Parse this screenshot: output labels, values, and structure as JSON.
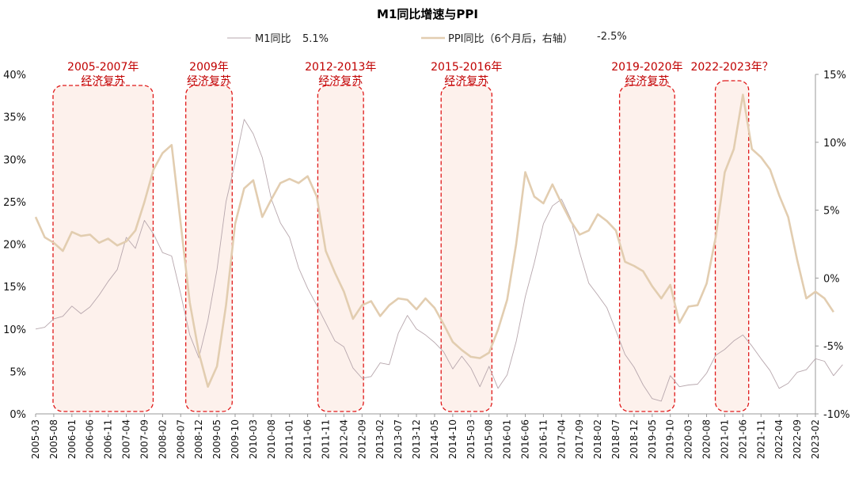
{
  "chart_data": {
    "type": "line",
    "title": "M1同比增速与PPI",
    "legend": [
      {
        "label": "M1同比",
        "value": "5.1%",
        "color": "#b7a7ad"
      },
      {
        "label": "PPI同比（6个月后，右轴）",
        "value": "-2.5%",
        "color": "#e2cdb0"
      }
    ],
    "y_left": {
      "min": 0,
      "max": 40,
      "ticks": [
        "0%",
        "5%",
        "10%",
        "15%",
        "20%",
        "25%",
        "30%",
        "35%",
        "40%"
      ]
    },
    "y_right": {
      "min": -10,
      "max": 15,
      "ticks": [
        "-10%",
        "-5%",
        "0%",
        "5%",
        "10%",
        "15%"
      ]
    },
    "x_ticks": [
      "2005-03",
      "2005-08",
      "2006-01",
      "2006-06",
      "2006-11",
      "2007-04",
      "2007-09",
      "2008-02",
      "2008-07",
      "2008-12",
      "2009-05",
      "2009-10",
      "2010-03",
      "2010-08",
      "2011-01",
      "2011-06",
      "2011-11",
      "2012-04",
      "2012-09",
      "2013-02",
      "2013-07",
      "2013-12",
      "2014-05",
      "2014-10",
      "2015-03",
      "2015-08",
      "2016-01",
      "2016-06",
      "2016-11",
      "2017-04",
      "2017-09",
      "2018-02",
      "2018-07",
      "2018-12",
      "2019-05",
      "2019-10",
      "2020-03",
      "2020-08",
      "2021-01",
      "2021-06",
      "2021-11",
      "2022-04",
      "2022-09",
      "2023-02"
    ],
    "series": [
      {
        "name": "M1同比",
        "axis": "left",
        "color": "#b7a7ad",
        "points": [
          [
            0,
            10.0
          ],
          [
            1,
            10.2
          ],
          [
            2,
            11.2
          ],
          [
            3,
            11.5
          ],
          [
            4,
            12.7
          ],
          [
            5,
            11.8
          ],
          [
            6,
            12.6
          ],
          [
            7,
            14.0
          ],
          [
            8,
            15.6
          ],
          [
            9,
            17.0
          ],
          [
            10,
            20.8
          ],
          [
            11,
            19.5
          ],
          [
            12,
            22.8
          ],
          [
            13,
            21.2
          ],
          [
            14,
            19.0
          ],
          [
            15,
            18.6
          ],
          [
            16,
            14.1
          ],
          [
            17,
            9.3
          ],
          [
            18,
            6.6
          ],
          [
            19,
            11.0
          ],
          [
            20,
            17.0
          ],
          [
            21,
            25.0
          ],
          [
            22,
            29.6
          ],
          [
            23,
            34.7
          ],
          [
            24,
            33.0
          ],
          [
            25,
            30.2
          ],
          [
            26,
            25.3
          ],
          [
            27,
            22.5
          ],
          [
            28,
            20.8
          ],
          [
            29,
            17.2
          ],
          [
            30,
            14.8
          ],
          [
            31,
            12.8
          ],
          [
            32,
            10.7
          ],
          [
            33,
            8.6
          ],
          [
            34,
            7.9
          ],
          [
            35,
            5.4
          ],
          [
            36,
            4.2
          ],
          [
            37,
            4.4
          ],
          [
            38,
            6.0
          ],
          [
            39,
            5.8
          ],
          [
            40,
            9.5
          ],
          [
            41,
            11.6
          ],
          [
            42,
            10.0
          ],
          [
            43,
            9.3
          ],
          [
            44,
            8.4
          ],
          [
            45,
            7.3
          ],
          [
            46,
            5.3
          ],
          [
            47,
            6.8
          ],
          [
            48,
            5.4
          ],
          [
            49,
            3.2
          ],
          [
            50,
            5.6
          ],
          [
            51,
            3.0
          ],
          [
            52,
            4.6
          ],
          [
            53,
            8.5
          ],
          [
            54,
            13.8
          ],
          [
            55,
            17.8
          ],
          [
            56,
            22.4
          ],
          [
            57,
            24.5
          ],
          [
            58,
            25.3
          ],
          [
            59,
            23.0
          ],
          [
            60,
            19.0
          ],
          [
            61,
            15.4
          ],
          [
            62,
            14.0
          ],
          [
            63,
            12.5
          ],
          [
            64,
            9.8
          ],
          [
            65,
            7.0
          ],
          [
            66,
            5.5
          ],
          [
            67,
            3.4
          ],
          [
            68,
            1.8
          ],
          [
            69,
            1.5
          ],
          [
            70,
            4.5
          ],
          [
            71,
            3.2
          ],
          [
            72,
            3.4
          ],
          [
            73,
            3.5
          ],
          [
            74,
            4.8
          ],
          [
            75,
            6.9
          ],
          [
            76,
            7.6
          ],
          [
            77,
            8.6
          ],
          [
            78,
            9.3
          ],
          [
            79,
            8.0
          ],
          [
            80,
            6.5
          ],
          [
            81,
            5.1
          ],
          [
            82,
            3.0
          ],
          [
            83,
            3.6
          ],
          [
            84,
            4.9
          ],
          [
            85,
            5.2
          ],
          [
            86,
            6.5
          ],
          [
            87,
            6.2
          ],
          [
            88,
            4.5
          ],
          [
            89,
            5.8
          ]
        ]
      },
      {
        "name": "PPI同比（6个月后，右轴）",
        "axis": "right",
        "color": "#e2cdb0",
        "points": [
          [
            0,
            4.5
          ],
          [
            1,
            3.0
          ],
          [
            2,
            2.6
          ],
          [
            3,
            2.0
          ],
          [
            4,
            3.4
          ],
          [
            5,
            3.1
          ],
          [
            6,
            3.2
          ],
          [
            7,
            2.6
          ],
          [
            8,
            2.9
          ],
          [
            9,
            2.4
          ],
          [
            10,
            2.7
          ],
          [
            11,
            3.5
          ],
          [
            12,
            5.6
          ],
          [
            13,
            8.0
          ],
          [
            14,
            9.2
          ],
          [
            15,
            9.8
          ],
          [
            16,
            4.0
          ],
          [
            17,
            -1.8
          ],
          [
            18,
            -5.5
          ],
          [
            19,
            -8.0
          ],
          [
            20,
            -6.5
          ],
          [
            21,
            -2.0
          ],
          [
            22,
            4.0
          ],
          [
            23,
            6.6
          ],
          [
            24,
            7.2
          ],
          [
            25,
            4.5
          ],
          [
            26,
            5.8
          ],
          [
            27,
            7.0
          ],
          [
            28,
            7.3
          ],
          [
            29,
            7.0
          ],
          [
            30,
            7.5
          ],
          [
            31,
            6.0
          ],
          [
            32,
            2.0
          ],
          [
            33,
            0.4
          ],
          [
            34,
            -1.0
          ],
          [
            35,
            -3.0
          ],
          [
            36,
            -2.0
          ],
          [
            37,
            -1.7
          ],
          [
            38,
            -2.8
          ],
          [
            39,
            -2.0
          ],
          [
            40,
            -1.5
          ],
          [
            41,
            -1.6
          ],
          [
            42,
            -2.3
          ],
          [
            43,
            -1.5
          ],
          [
            44,
            -2.2
          ],
          [
            45,
            -3.4
          ],
          [
            46,
            -4.7
          ],
          [
            47,
            -5.3
          ],
          [
            48,
            -5.8
          ],
          [
            49,
            -5.9
          ],
          [
            50,
            -5.5
          ],
          [
            51,
            -3.8
          ],
          [
            52,
            -1.6
          ],
          [
            53,
            2.5
          ],
          [
            54,
            7.8
          ],
          [
            55,
            6.0
          ],
          [
            56,
            5.5
          ],
          [
            57,
            6.9
          ],
          [
            58,
            5.5
          ],
          [
            59,
            4.2
          ],
          [
            60,
            3.2
          ],
          [
            61,
            3.5
          ],
          [
            62,
            4.7
          ],
          [
            63,
            4.2
          ],
          [
            64,
            3.5
          ],
          [
            65,
            1.2
          ],
          [
            66,
            0.9
          ],
          [
            67,
            0.5
          ],
          [
            68,
            -0.6
          ],
          [
            69,
            -1.5
          ],
          [
            70,
            -0.5
          ],
          [
            71,
            -3.3
          ],
          [
            72,
            -2.1
          ],
          [
            73,
            -2.0
          ],
          [
            74,
            -0.4
          ],
          [
            75,
            3.0
          ],
          [
            76,
            7.8
          ],
          [
            77,
            9.5
          ],
          [
            78,
            13.5
          ],
          [
            79,
            9.5
          ],
          [
            80,
            8.9
          ],
          [
            81,
            8.0
          ],
          [
            82,
            6.1
          ],
          [
            83,
            4.5
          ],
          [
            84,
            1.3
          ],
          [
            85,
            -1.5
          ],
          [
            86,
            -1.0
          ],
          [
            87,
            -1.5
          ],
          [
            88,
            -2.5
          ]
        ]
      }
    ],
    "annotations": [
      {
        "lines": [
          "2005-2007年",
          "经济复苏"
        ],
        "from": 2.4,
        "to": 16.2
      },
      {
        "lines": [
          "2009年",
          "经济复苏"
        ],
        "from": 20.7,
        "to": 27.1
      },
      {
        "lines": [
          "2012-2013年",
          "经济复苏"
        ],
        "from": 38.9,
        "to": 45.2
      },
      {
        "lines": [
          "2015-2016年",
          "经济复苏"
        ],
        "from": 55.9,
        "to": 62.9
      },
      {
        "lines": [
          "2019-2020年",
          "经济复苏"
        ],
        "from": 80.5,
        "to": 88.1
      },
      {
        "lines": [
          "2022-2023年？"
        ],
        "from": 93.7,
        "to": 98.3
      }
    ]
  }
}
